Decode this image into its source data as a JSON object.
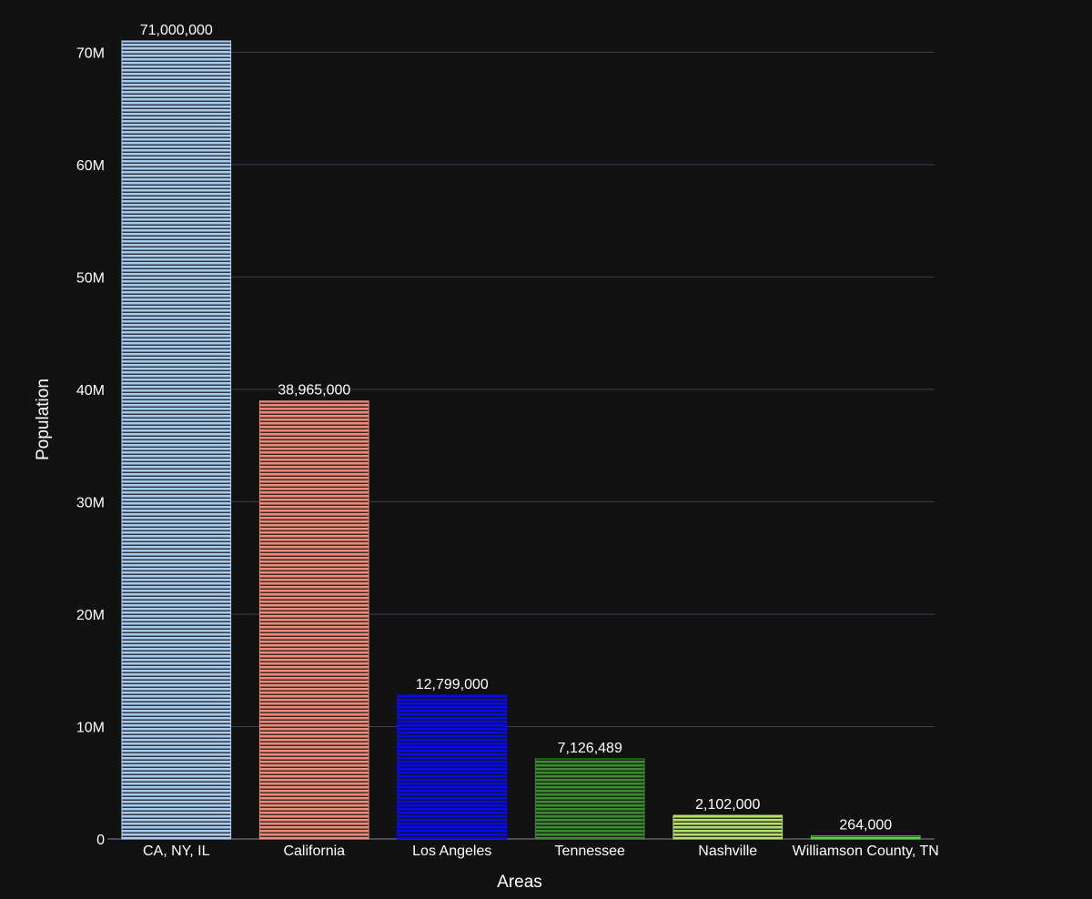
{
  "chart_data": {
    "type": "bar",
    "title": "",
    "xlabel": "Areas",
    "ylabel": "Population",
    "categories": [
      "CA, NY, IL",
      "California",
      "Los Angeles",
      "Tennessee",
      "Nashville",
      "Williamson County, TN"
    ],
    "values": [
      71000000,
      38965000,
      12799000,
      7126489,
      2102000,
      264000
    ],
    "value_labels": [
      "71,000,000",
      "38,965,000",
      "12,799,000",
      "7,126,489",
      "2,102,000",
      "264,000"
    ],
    "colors": [
      "#a8cdf0",
      "#f08a7a",
      "#0a0aee",
      "#3c8a2e",
      "#b5e06a",
      "#5ad048"
    ],
    "ylim": [
      0,
      71000000
    ],
    "yticks": [
      0,
      10000000,
      20000000,
      30000000,
      40000000,
      50000000,
      60000000,
      70000000
    ],
    "ytick_labels": [
      "0",
      "10M",
      "20M",
      "30M",
      "40M",
      "50M",
      "60M",
      "70M"
    ],
    "grid": true,
    "bar_pattern": "horizontal-lines",
    "background": "#111111"
  }
}
